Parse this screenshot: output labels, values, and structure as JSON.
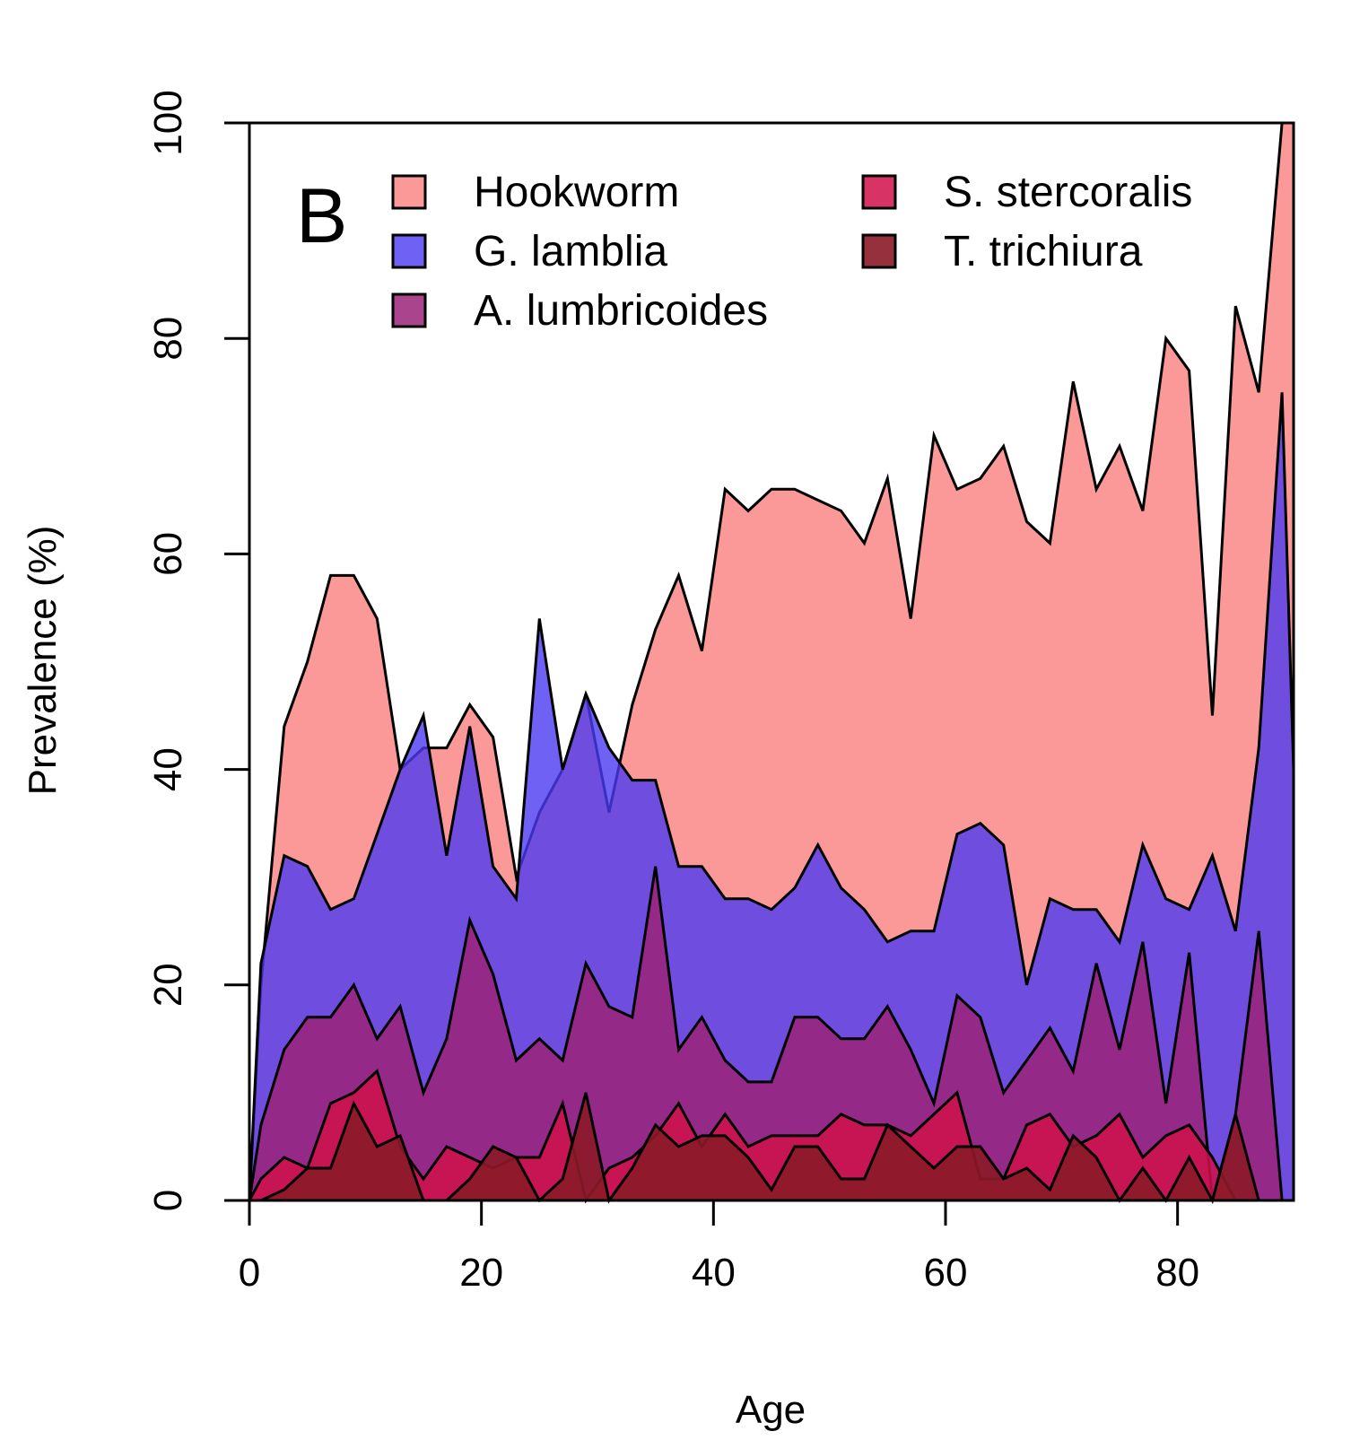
{
  "chart_data": {
    "type": "area",
    "panel_label": "B",
    "xlabel": "Age",
    "ylabel": "Prevalence (%)",
    "xlim": [
      0,
      90
    ],
    "ylim": [
      0,
      100
    ],
    "xticks": [
      0,
      20,
      40,
      60,
      80
    ],
    "yticks": [
      0,
      20,
      40,
      60,
      80,
      100
    ],
    "grid": false,
    "legend_position": "top-left",
    "x": [
      0,
      1,
      3,
      5,
      7,
      9,
      11,
      13,
      15,
      17,
      19,
      21,
      23,
      25,
      27,
      29,
      31,
      33,
      35,
      37,
      39,
      41,
      43,
      45,
      47,
      49,
      51,
      53,
      55,
      57,
      59,
      61,
      63,
      65,
      67,
      69,
      71,
      73,
      75,
      77,
      79,
      81,
      83,
      85,
      87,
      89,
      90
    ],
    "series": [
      {
        "name": "Hookworm",
        "color": "#fa8080",
        "opacity": 0.8,
        "values": [
          0,
          20,
          44,
          50,
          58,
          58,
          54,
          40,
          42,
          42,
          46,
          43,
          30,
          36,
          40,
          47,
          36,
          46,
          53,
          58,
          51,
          66,
          64,
          66,
          66,
          65,
          64,
          61,
          67,
          54,
          71,
          66,
          67,
          70,
          63,
          61,
          76,
          66,
          70,
          64,
          80,
          77,
          45,
          83,
          75,
          100,
          100
        ]
      },
      {
        "name": "G. lamblia",
        "color": "#4b3af0",
        "opacity": 0.8,
        "values": [
          0,
          22,
          32,
          31,
          27,
          28,
          34,
          40,
          45,
          32,
          44,
          31,
          28,
          54,
          40,
          47,
          42,
          39,
          39,
          31,
          31,
          28,
          28,
          27,
          29,
          33,
          29,
          27,
          24,
          25,
          25,
          34,
          35,
          33,
          20,
          28,
          27,
          27,
          24,
          33,
          28,
          27,
          32,
          25,
          42,
          75,
          40
        ]
      },
      {
        "name": "A. lumbricoides",
        "color": "#9b2378",
        "opacity": 0.85,
        "values": [
          0,
          7,
          14,
          17,
          17,
          20,
          15,
          18,
          10,
          15,
          26,
          21,
          13,
          15,
          13,
          22,
          18,
          17,
          31,
          14,
          17,
          13,
          11,
          11,
          17,
          17,
          15,
          15,
          18,
          14,
          9,
          19,
          17,
          10,
          13,
          16,
          12,
          22,
          14,
          24,
          9,
          23,
          0,
          8,
          25,
          0,
          0
        ]
      },
      {
        "name": "S. stercoralis",
        "color": "#d0104a",
        "opacity": 0.85,
        "values": [
          0,
          2,
          4,
          3,
          9,
          10,
          12,
          5,
          2,
          5,
          4,
          3,
          4,
          4,
          9,
          0,
          3,
          4,
          6,
          9,
          5,
          8,
          5,
          6,
          6,
          6,
          8,
          7,
          7,
          6,
          8,
          10,
          2,
          2,
          7,
          8,
          5,
          6,
          8,
          4,
          6,
          7,
          4,
          0,
          0,
          0,
          0
        ]
      },
      {
        "name": "T. trichiura",
        "color": "#8b1a28",
        "opacity": 0.9,
        "values": [
          0,
          0,
          1,
          3,
          3,
          9,
          5,
          6,
          0,
          0,
          2,
          5,
          4,
          0,
          2,
          10,
          0,
          3,
          7,
          5,
          6,
          6,
          4,
          1,
          5,
          5,
          2,
          2,
          7,
          5,
          3,
          5,
          5,
          2,
          3,
          1,
          6,
          4,
          0,
          3,
          0,
          4,
          0,
          8,
          0,
          0,
          0
        ]
      }
    ]
  }
}
